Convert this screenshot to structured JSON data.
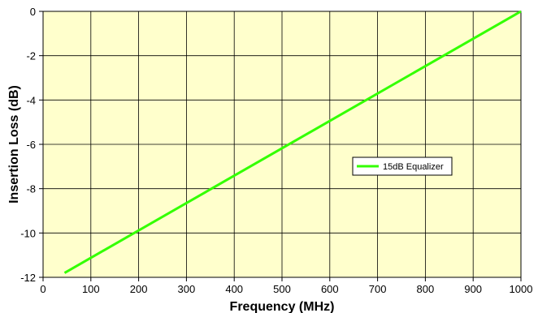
{
  "chart_data": {
    "type": "line",
    "title": "",
    "xlabel": "Frequency (MHz)",
    "ylabel": "Insertion Loss (dB)",
    "xlim": [
      0,
      1000
    ],
    "ylim": [
      -12,
      0
    ],
    "xticks": [
      0,
      100,
      200,
      300,
      400,
      500,
      600,
      700,
      800,
      900,
      1000
    ],
    "yticks": [
      0,
      -2,
      -4,
      -6,
      -8,
      -10,
      -12
    ],
    "grid": true,
    "plot_background": "#FFFFCC",
    "legend_position": "right-middle",
    "series": [
      {
        "name": "15dB Equalizer",
        "color": "#33FF00",
        "x": [
          45,
          1000
        ],
        "y": [
          -11.8,
          0
        ]
      }
    ]
  }
}
